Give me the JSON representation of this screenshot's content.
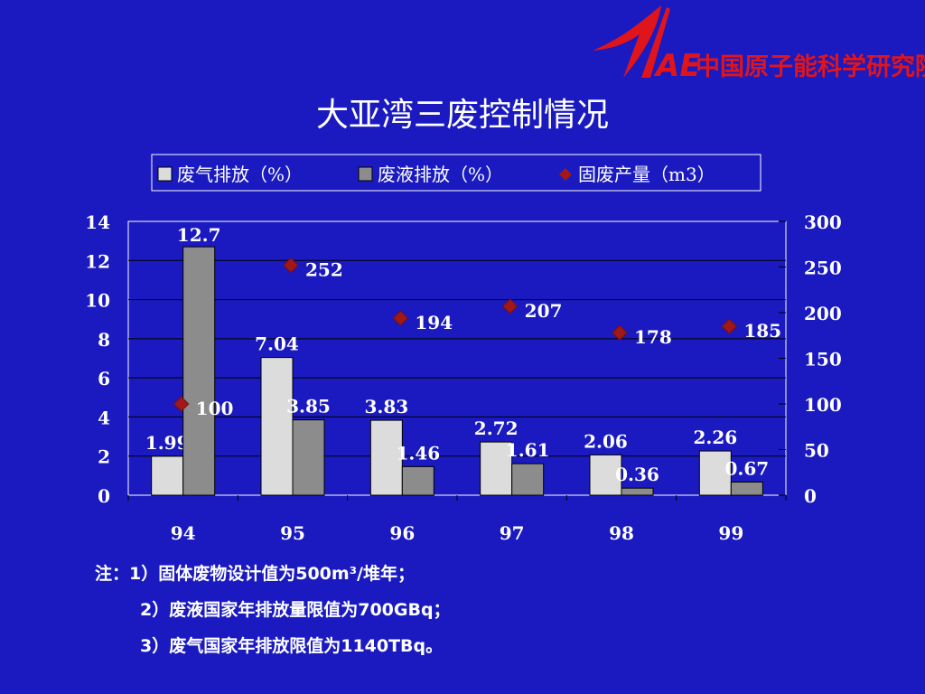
{
  "logo": {
    "mark_text": "AE",
    "org_name": "中国原子能科学研究院",
    "color": "#E0151B"
  },
  "title": "大亚湾三废控制情况",
  "chart_data": {
    "type": "bar",
    "title": "大亚湾三废控制情况",
    "categories": [
      "94",
      "95",
      "96",
      "97",
      "98",
      "99"
    ],
    "series": [
      {
        "name": "废气排放（%）",
        "kind": "bar",
        "axis": "left",
        "color": "#DCDCDC",
        "values": [
          1.99,
          7.04,
          3.83,
          2.72,
          2.06,
          2.26
        ],
        "labels": [
          "1.99",
          "7.04",
          "3.83",
          "2.72",
          "2.06",
          "2.26"
        ]
      },
      {
        "name": "废液排放（%）",
        "kind": "bar",
        "axis": "left",
        "color": "#8C8C8C",
        "values": [
          12.7,
          3.85,
          1.46,
          1.61,
          0.36,
          0.67
        ],
        "labels": [
          "12.7",
          "3.85",
          "1.46",
          "1.61",
          "0.36",
          "0.67"
        ]
      },
      {
        "name": "固废产量（m3）",
        "kind": "scatter",
        "axis": "right",
        "color": "#A01818",
        "marker": "diamond",
        "values": [
          100,
          252,
          194,
          207,
          178,
          185
        ],
        "labels": [
          "100",
          "252",
          "194",
          "207",
          "178",
          "185"
        ]
      }
    ],
    "y_left": {
      "min": 0,
      "max": 14,
      "ticks": [
        "0",
        "2",
        "4",
        "6",
        "8",
        "10",
        "12",
        "14"
      ]
    },
    "y_right": {
      "min": 0,
      "max": 300,
      "ticks": [
        "0",
        "50",
        "100",
        "150",
        "200",
        "250",
        "300"
      ]
    },
    "grid": true,
    "legend_position": "top"
  },
  "notes": {
    "line1_prefix": "注：",
    "line1": "1）固体废物设计值为500m³/堆年；",
    "line2": "2）废液国家年排放量限值为700GBq；",
    "line3": "3）废气国家年排放限值为1140TBq。"
  },
  "colors": {
    "background": "#1A1AC0",
    "plot_area": "#1A1AC0",
    "text": "#FFFFFF"
  }
}
